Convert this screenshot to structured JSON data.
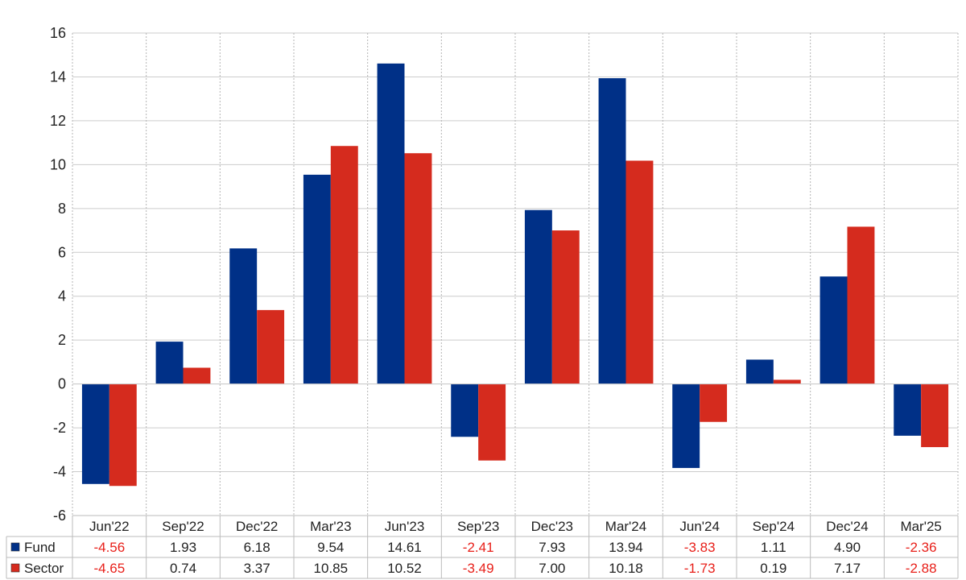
{
  "chart_data": {
    "type": "bar",
    "categories": [
      "Jun'22",
      "Sep'22",
      "Dec'22",
      "Mar'23",
      "Jun'23",
      "Sep'23",
      "Dec'23",
      "Mar'24",
      "Jun'24",
      "Sep'24",
      "Dec'24",
      "Mar'25"
    ],
    "series": [
      {
        "name": "Fund",
        "values": [
          -4.56,
          1.93,
          6.18,
          9.54,
          14.61,
          -2.41,
          7.93,
          13.94,
          -3.83,
          1.11,
          4.9,
          -2.36
        ],
        "labels": [
          "-4.56",
          "1.93",
          "6.18",
          "9.54",
          "14.61",
          "-2.41",
          "7.93",
          "13.94",
          "-3.83",
          "1.11",
          "4.90",
          "-2.36"
        ],
        "color": "#003087"
      },
      {
        "name": "Sector",
        "values": [
          -4.65,
          0.74,
          3.37,
          10.85,
          10.52,
          -3.49,
          7.0,
          10.18,
          -1.73,
          0.19,
          7.17,
          -2.88
        ],
        "labels": [
          "-4.65",
          "0.74",
          "3.37",
          "10.85",
          "10.52",
          "-3.49",
          "7.00",
          "10.18",
          "-1.73",
          "0.19",
          "7.17",
          "-2.88"
        ],
        "color": "#d52b1e"
      }
    ],
    "yticks": [
      "16",
      "14",
      "12",
      "10",
      "8",
      "6",
      "4",
      "2",
      "0",
      "-2",
      "-4",
      "-6"
    ],
    "ylim": [
      -6,
      16
    ],
    "grid": true,
    "legend": "data-table-bottom",
    "negative_color": "#e8201a",
    "positive_color": "#222222"
  }
}
